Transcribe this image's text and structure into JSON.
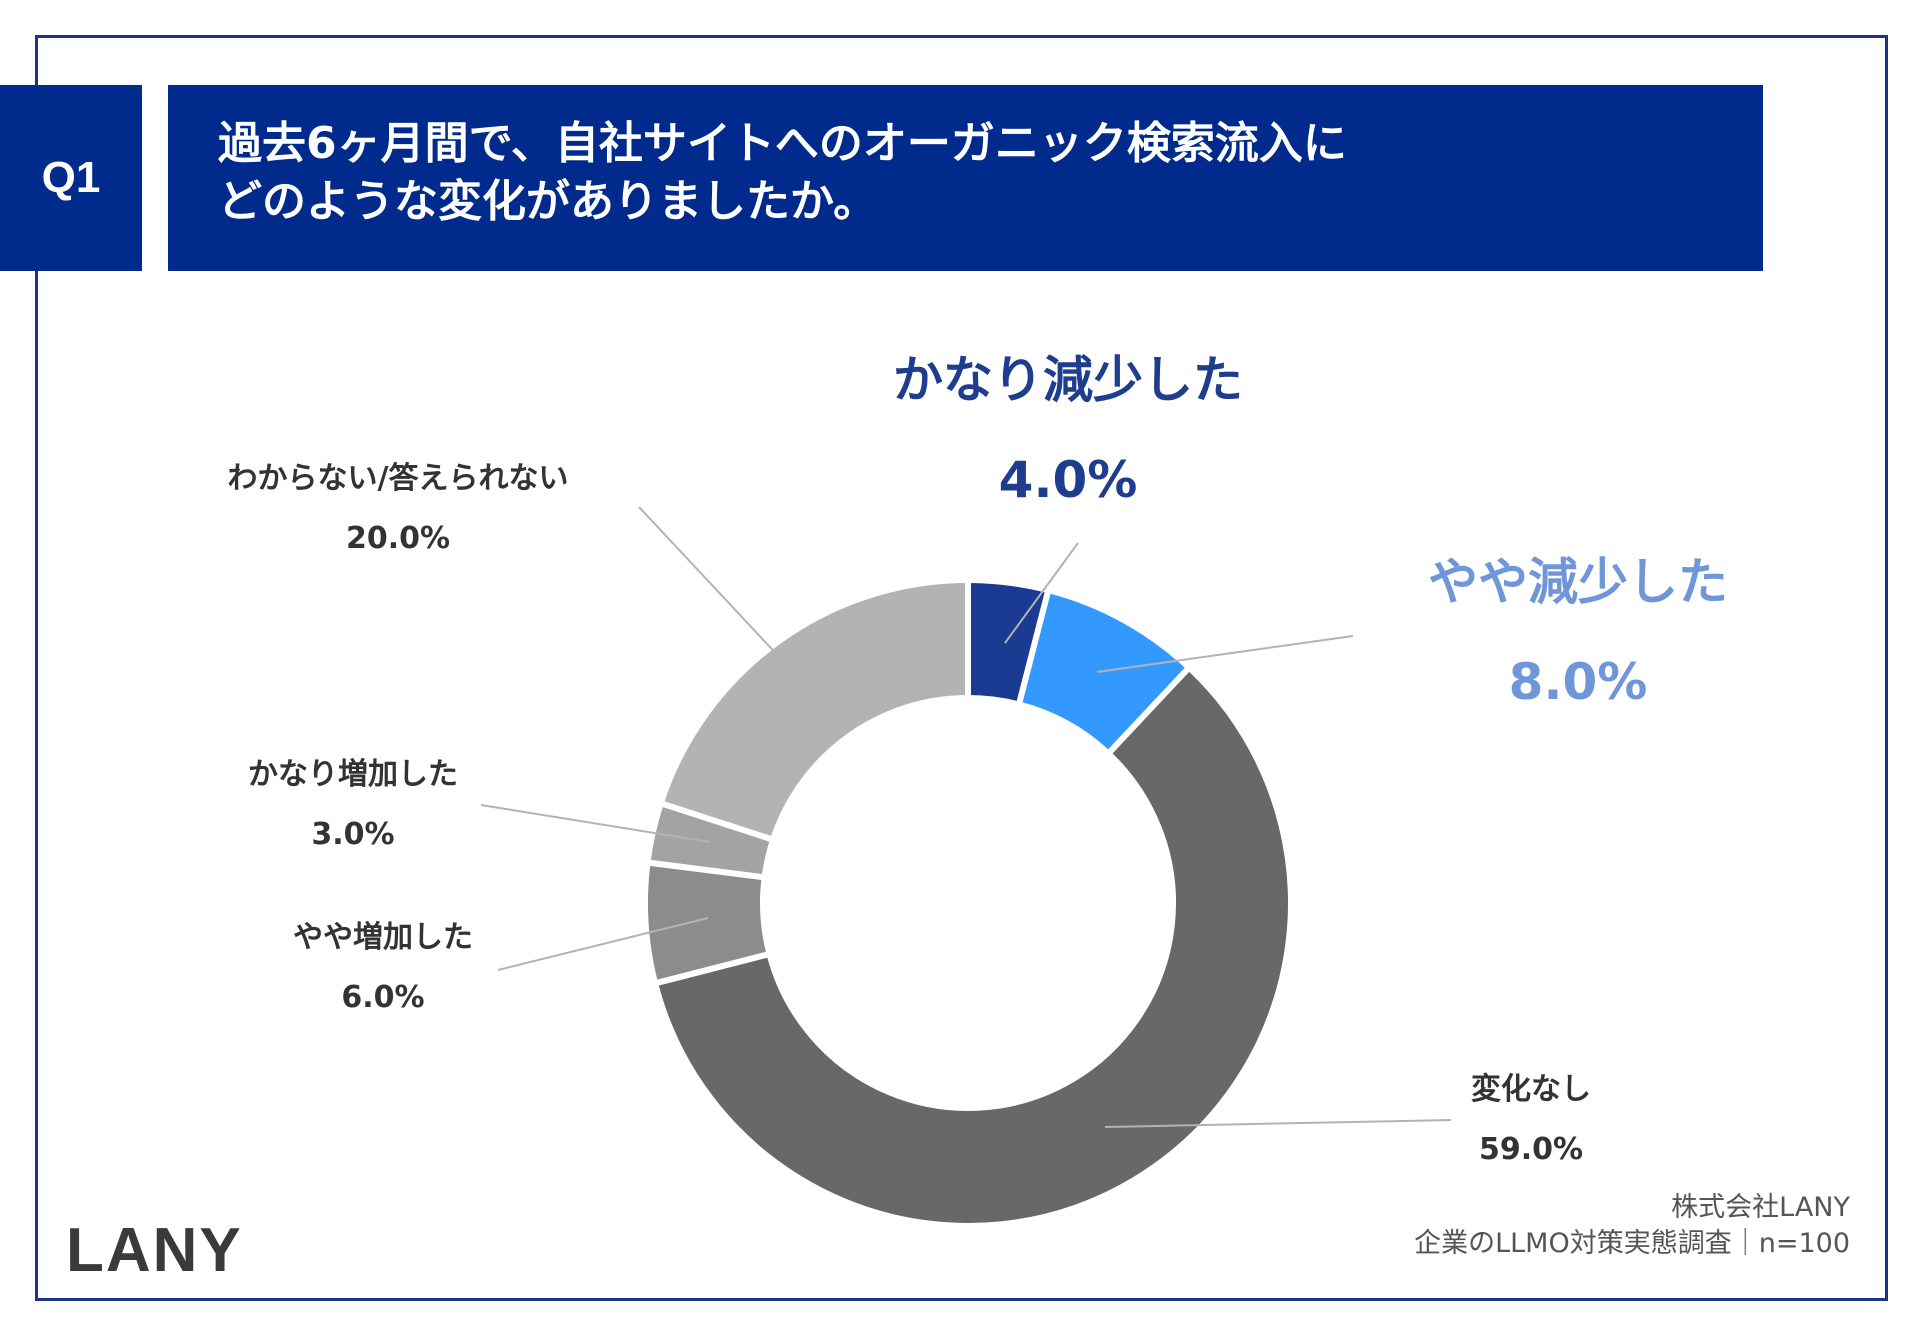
{
  "header": {
    "badge": "Q1",
    "title_line1": "過去6ヶ月間で、自社サイトへのオーガニック検索流入に",
    "title_line2": "どのような変化がありましたか。"
  },
  "chart_data": {
    "type": "pie",
    "donut": true,
    "unit": "%",
    "slices": [
      {
        "label": "かなり減少した",
        "value": 4.0,
        "pct_text": "4.0%",
        "color": "#1a3b91",
        "label_color": "#1f3d8f"
      },
      {
        "label": "やや減少した",
        "value": 8.0,
        "pct_text": "8.0%",
        "color": "#3399ff",
        "label_color": "#6f96d8"
      },
      {
        "label": "変化なし",
        "value": 59.0,
        "pct_text": "59.0%",
        "color": "#686868",
        "label_color": "#333333"
      },
      {
        "label": "やや増加した",
        "value": 6.0,
        "pct_text": "6.0%",
        "color": "#8c8c8c",
        "label_color": "#333333"
      },
      {
        "label": "かなり増加した",
        "value": 3.0,
        "pct_text": "3.0%",
        "color": "#a3a3a3",
        "label_color": "#333333"
      },
      {
        "label": "わからない/答えられない",
        "value": 20.0,
        "pct_text": "20.0%",
        "color": "#b3b3b3",
        "label_color": "#333333"
      }
    ]
  },
  "footer": {
    "company": "株式会社LANY",
    "survey": "企業のLLMO対策実態調査｜n=100",
    "logo": "LANY"
  },
  "colors": {
    "navy": "#002a8c",
    "frame": "#1d3488",
    "leader": "#b3b3b3"
  }
}
